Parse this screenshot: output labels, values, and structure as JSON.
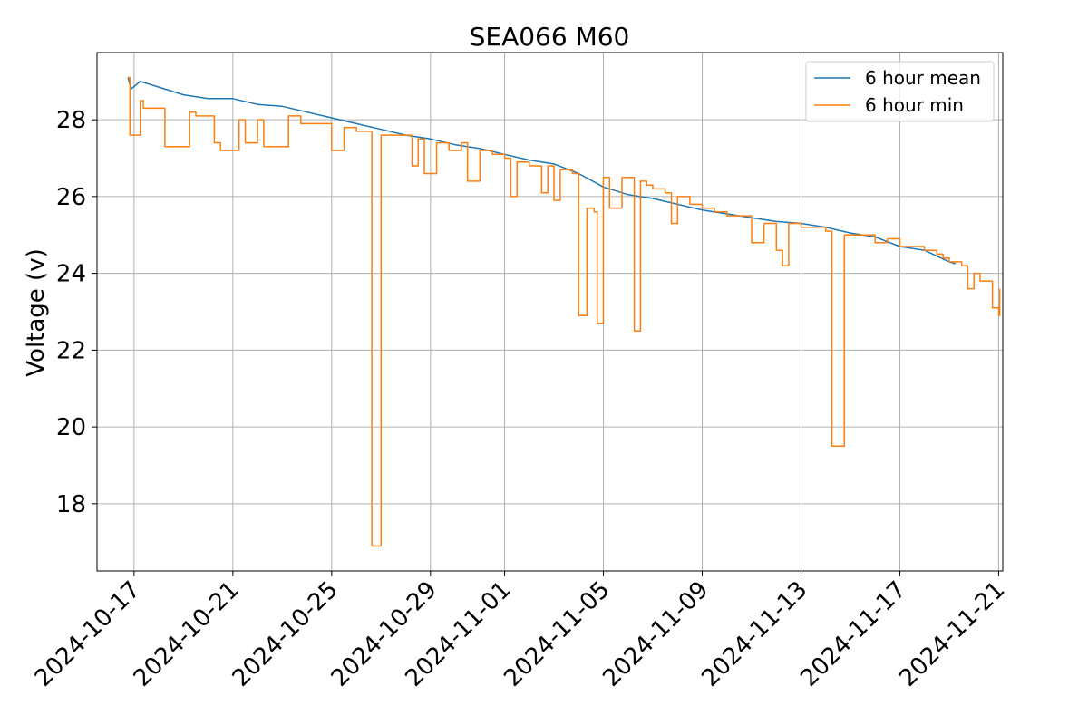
{
  "chart_data": {
    "type": "line",
    "title": "SEA066 M60",
    "xlabel": "",
    "ylabel": "Voltage (v)",
    "x_type": "date",
    "xlim": [
      "2024-10-15T12:00",
      "2024-11-21T04:00"
    ],
    "ylim": [
      16.25,
      29.75
    ],
    "yticks": [
      18,
      20,
      22,
      24,
      26,
      28
    ],
    "xticks": [
      "2024-10-17",
      "2024-10-21",
      "2024-10-25",
      "2024-10-29",
      "2024-11-01",
      "2024-11-05",
      "2024-11-09",
      "2024-11-13",
      "2024-11-17",
      "2024-11-21"
    ],
    "grid": true,
    "legend_position": "top-right",
    "series": [
      {
        "name": "6 hour mean",
        "color": "#1f77b4",
        "points": [
          [
            "2024-10-16T18:00",
            29.1
          ],
          [
            "2024-10-16T21:00",
            28.8
          ],
          [
            "2024-10-17T06:00",
            29.0
          ],
          [
            "2024-10-18T00:00",
            28.85
          ],
          [
            "2024-10-19T00:00",
            28.65
          ],
          [
            "2024-10-20T00:00",
            28.55
          ],
          [
            "2024-10-21T00:00",
            28.55
          ],
          [
            "2024-10-22T00:00",
            28.4
          ],
          [
            "2024-10-23T00:00",
            28.35
          ],
          [
            "2024-10-24T00:00",
            28.2
          ],
          [
            "2024-10-25T00:00",
            28.05
          ],
          [
            "2024-10-26T00:00",
            27.9
          ],
          [
            "2024-10-27T00:00",
            27.75
          ],
          [
            "2024-10-28T00:00",
            27.6
          ],
          [
            "2024-10-29T00:00",
            27.5
          ],
          [
            "2024-10-30T00:00",
            27.35
          ],
          [
            "2024-10-31T00:00",
            27.25
          ],
          [
            "2024-11-01T00:00",
            27.1
          ],
          [
            "2024-11-02T00:00",
            26.95
          ],
          [
            "2024-11-03T00:00",
            26.85
          ],
          [
            "2024-11-04T00:00",
            26.6
          ],
          [
            "2024-11-05T00:00",
            26.25
          ],
          [
            "2024-11-06T00:00",
            26.05
          ],
          [
            "2024-11-07T00:00",
            25.95
          ],
          [
            "2024-11-08T00:00",
            25.8
          ],
          [
            "2024-11-09T00:00",
            25.65
          ],
          [
            "2024-11-10T00:00",
            25.55
          ],
          [
            "2024-11-11T00:00",
            25.45
          ],
          [
            "2024-11-12T00:00",
            25.35
          ],
          [
            "2024-11-13T00:00",
            25.3
          ],
          [
            "2024-11-14T00:00",
            25.2
          ],
          [
            "2024-11-15T00:00",
            25.05
          ],
          [
            "2024-11-16T00:00",
            24.95
          ],
          [
            "2024-11-17T00:00",
            24.7
          ],
          [
            "2024-11-18T00:00",
            24.6
          ],
          [
            "2024-11-19T00:00",
            24.3
          ],
          [
            "2024-11-19T06:00",
            24.25
          ]
        ]
      },
      {
        "name": "6 hour min",
        "color": "#ff7f0e",
        "points": [
          [
            "2024-10-16T18:00",
            29.1
          ],
          [
            "2024-10-16T20:00",
            27.6
          ],
          [
            "2024-10-17T00:00",
            27.6
          ],
          [
            "2024-10-17T06:00",
            28.5
          ],
          [
            "2024-10-17T09:00",
            28.3
          ],
          [
            "2024-10-18T00:00",
            28.3
          ],
          [
            "2024-10-18T06:00",
            27.3
          ],
          [
            "2024-10-19T00:00",
            27.3
          ],
          [
            "2024-10-19T06:00",
            28.2
          ],
          [
            "2024-10-19T12:00",
            28.1
          ],
          [
            "2024-10-20T00:00",
            28.1
          ],
          [
            "2024-10-20T06:00",
            27.4
          ],
          [
            "2024-10-20T12:00",
            27.2
          ],
          [
            "2024-10-21T00:00",
            27.2
          ],
          [
            "2024-10-21T06:00",
            28.0
          ],
          [
            "2024-10-21T12:00",
            27.4
          ],
          [
            "2024-10-22T00:00",
            28.0
          ],
          [
            "2024-10-22T06:00",
            27.3
          ],
          [
            "2024-10-23T00:00",
            27.3
          ],
          [
            "2024-10-23T06:00",
            28.1
          ],
          [
            "2024-10-23T18:00",
            27.9
          ],
          [
            "2024-10-24T12:00",
            27.9
          ],
          [
            "2024-10-25T00:00",
            27.2
          ],
          [
            "2024-10-25T12:00",
            27.8
          ],
          [
            "2024-10-26T00:00",
            27.7
          ],
          [
            "2024-10-26T12:00",
            27.7
          ],
          [
            "2024-10-26T15:00",
            16.9
          ],
          [
            "2024-10-26T21:00",
            16.9
          ],
          [
            "2024-10-27T00:00",
            27.6
          ],
          [
            "2024-10-28T00:00",
            27.6
          ],
          [
            "2024-10-28T06:00",
            26.8
          ],
          [
            "2024-10-28T12:00",
            27.5
          ],
          [
            "2024-10-28T18:00",
            26.6
          ],
          [
            "2024-10-29T06:00",
            27.4
          ],
          [
            "2024-10-29T18:00",
            27.2
          ],
          [
            "2024-10-30T06:00",
            27.4
          ],
          [
            "2024-10-30T12:00",
            26.4
          ],
          [
            "2024-10-30T18:00",
            26.4
          ],
          [
            "2024-10-31T00:00",
            27.2
          ],
          [
            "2024-10-31T12:00",
            27.1
          ],
          [
            "2024-11-01T00:00",
            27.0
          ],
          [
            "2024-11-01T06:00",
            26.0
          ],
          [
            "2024-11-01T12:00",
            26.9
          ],
          [
            "2024-11-02T00:00",
            26.8
          ],
          [
            "2024-11-02T12:00",
            26.1
          ],
          [
            "2024-11-02T18:00",
            26.8
          ],
          [
            "2024-11-03T00:00",
            25.9
          ],
          [
            "2024-11-03T06:00",
            26.7
          ],
          [
            "2024-11-03T18:00",
            26.6
          ],
          [
            "2024-11-04T00:00",
            22.9
          ],
          [
            "2024-11-04T06:00",
            22.9
          ],
          [
            "2024-11-04T08:00",
            25.7
          ],
          [
            "2024-11-04T15:00",
            25.6
          ],
          [
            "2024-11-04T18:00",
            22.7
          ],
          [
            "2024-11-05T00:00",
            26.5
          ],
          [
            "2024-11-05T06:00",
            25.7
          ],
          [
            "2024-11-05T18:00",
            26.5
          ],
          [
            "2024-11-06T06:00",
            22.5
          ],
          [
            "2024-11-06T12:00",
            26.4
          ],
          [
            "2024-11-06T18:00",
            26.3
          ],
          [
            "2024-11-07T00:00",
            26.2
          ],
          [
            "2024-11-07T12:00",
            26.1
          ],
          [
            "2024-11-07T18:00",
            25.3
          ],
          [
            "2024-11-08T00:00",
            26.0
          ],
          [
            "2024-11-08T12:00",
            25.8
          ],
          [
            "2024-11-09T00:00",
            25.7
          ],
          [
            "2024-11-09T12:00",
            25.6
          ],
          [
            "2024-11-10T00:00",
            25.5
          ],
          [
            "2024-11-10T12:00",
            25.5
          ],
          [
            "2024-11-11T00:00",
            24.8
          ],
          [
            "2024-11-11T12:00",
            25.3
          ],
          [
            "2024-11-12T00:00",
            24.6
          ],
          [
            "2024-11-12T06:00",
            24.2
          ],
          [
            "2024-11-12T12:00",
            25.3
          ],
          [
            "2024-11-13T00:00",
            25.2
          ],
          [
            "2024-11-13T12:00",
            25.2
          ],
          [
            "2024-11-14T00:00",
            25.1
          ],
          [
            "2024-11-14T06:00",
            19.5
          ],
          [
            "2024-11-14T12:00",
            19.5
          ],
          [
            "2024-11-14T18:00",
            25.0
          ],
          [
            "2024-11-15T00:00",
            25.0
          ],
          [
            "2024-11-15T12:00",
            25.0
          ],
          [
            "2024-11-16T00:00",
            24.8
          ],
          [
            "2024-11-16T12:00",
            24.9
          ],
          [
            "2024-11-17T00:00",
            24.7
          ],
          [
            "2024-11-17T12:00",
            24.7
          ],
          [
            "2024-11-18T00:00",
            24.6
          ],
          [
            "2024-11-18T12:00",
            24.5
          ],
          [
            "2024-11-18T18:00",
            24.4
          ],
          [
            "2024-11-19T00:00",
            24.3
          ],
          [
            "2024-11-19T12:00",
            24.2
          ],
          [
            "2024-11-19T18:00",
            23.6
          ],
          [
            "2024-11-20T00:00",
            24.0
          ],
          [
            "2024-11-20T06:00",
            23.8
          ],
          [
            "2024-11-20T12:00",
            23.8
          ],
          [
            "2024-11-20T18:00",
            23.1
          ],
          [
            "2024-11-21T00:00",
            22.9
          ],
          [
            "2024-11-21T01:00",
            23.6
          ]
        ]
      }
    ]
  }
}
